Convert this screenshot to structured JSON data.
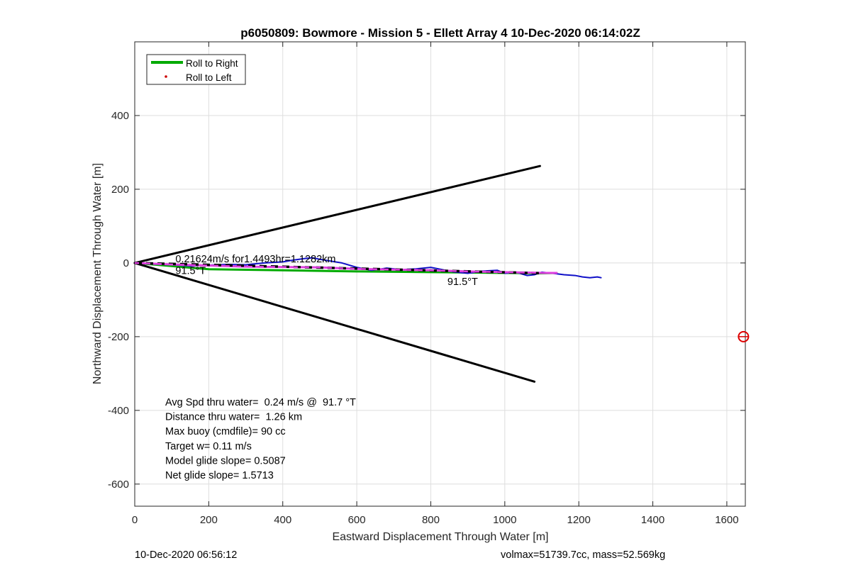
{
  "chart_data": {
    "type": "line",
    "title": "p6050809: Bowmore - Mission 5 - Ellett Array 4 10-Dec-2020 06:14:02Z",
    "xlabel": "Eastward Displacement Through Water [m]",
    "ylabel": "Northward Displacement Through Water [m]",
    "xlim": [
      0,
      1650
    ],
    "ylim": [
      -660,
      600
    ],
    "xticks": [
      0,
      200,
      400,
      600,
      800,
      1000,
      1200,
      1400,
      1600
    ],
    "yticks": [
      -600,
      -400,
      -200,
      0,
      200,
      400
    ],
    "grid": true,
    "legend": {
      "location": "top-left",
      "entries": [
        {
          "label": "Roll to Right",
          "color": "#00aa00",
          "style": "line"
        },
        {
          "label": "Roll to Left",
          "color": "#cc0000",
          "style": "dot"
        }
      ]
    },
    "series": [
      {
        "name": "Roll to Right",
        "color": "#00aa00",
        "x": [
          0,
          200,
          400,
          600,
          800,
          1000,
          1100,
          1140
        ],
        "y": [
          0,
          -17,
          -20,
          -23,
          -25,
          -27,
          -28,
          -27
        ]
      },
      {
        "color": "#1010c8",
        "x": [
          0,
          50,
          100,
          150,
          200,
          250,
          300,
          350,
          400,
          430,
          460,
          480,
          500,
          530,
          560,
          600,
          640,
          680,
          720,
          760,
          800,
          830,
          860,
          900,
          940,
          980,
          1000,
          1030,
          1060,
          1080,
          1100,
          1130,
          1160,
          1190,
          1210,
          1230,
          1250,
          1260
        ],
        "y": [
          0,
          -3,
          -5,
          -8,
          -6,
          -4,
          -5,
          0,
          3,
          8,
          12,
          14,
          10,
          5,
          0,
          -12,
          -20,
          -14,
          -18,
          -16,
          -12,
          -18,
          -24,
          -28,
          -22,
          -20,
          -28,
          -25,
          -34,
          -32,
          -25,
          -28,
          -32,
          -34,
          -38,
          -40,
          -38,
          -40
        ]
      },
      {
        "color": "#e040e0",
        "x": [
          0,
          100,
          200,
          300,
          400,
          500,
          600,
          700,
          800,
          900,
          1000,
          1100,
          1140
        ],
        "y": [
          0,
          -4,
          -7,
          -10,
          -11,
          -12,
          -16,
          -18,
          -20,
          -23,
          -25,
          -27,
          -27
        ]
      },
      {
        "color": "#000000",
        "style": "dashed",
        "x": [
          0,
          1100
        ],
        "y": [
          0,
          -28
        ]
      },
      {
        "color": "#000000",
        "x": [
          0,
          1095
        ],
        "y": [
          0,
          263
        ]
      },
      {
        "color": "#000000",
        "x": [
          0,
          1080
        ],
        "y": [
          0,
          -322
        ]
      }
    ],
    "marker": {
      "x": 1645,
      "y": -200,
      "color": "#dd0000",
      "shape": "open-circle"
    },
    "annotations": [
      {
        "text": "0.21624m/s for1.4493hr=1.1282km",
        "x": 110,
        "y": 2
      },
      {
        "text": "91.5°T",
        "x": 110,
        "y": -30
      },
      {
        "text": "91.5°T",
        "x": 845,
        "y": -60
      }
    ],
    "stats": [
      "Avg Spd thru water=  0.24 m/s @  91.7 °T",
      "Distance thru water=  1.26 km",
      "Max buoy (cmdfile)= 90 cc",
      "Target w= 0.11 m/s",
      "Model glide slope= 0.5087",
      "Net glide slope= 1.5713"
    ]
  },
  "footer": {
    "left": "10-Dec-2020 06:56:12",
    "right": "volmax=51739.7cc, mass=52.569kg"
  }
}
